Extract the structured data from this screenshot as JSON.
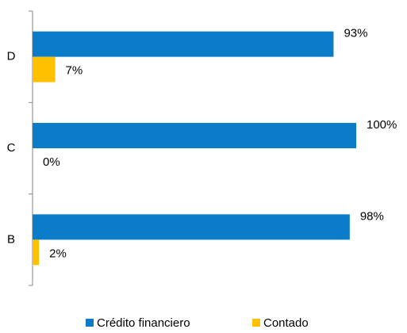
{
  "chart_data": {
    "type": "bar",
    "orientation": "horizontal",
    "categories": [
      "D",
      "C",
      "B"
    ],
    "series": [
      {
        "name": "Crédito financiero",
        "color": "#0A7CC8",
        "values": [
          93,
          100,
          98
        ],
        "value_labels": [
          "93%",
          "100%",
          "98%"
        ]
      },
      {
        "name": "Contado",
        "color": "#FFC000",
        "values": [
          7,
          0,
          2
        ],
        "value_labels": [
          "7%",
          "0%",
          "2%"
        ]
      }
    ],
    "xlim": [
      0,
      100
    ],
    "legend": "bottom"
  }
}
